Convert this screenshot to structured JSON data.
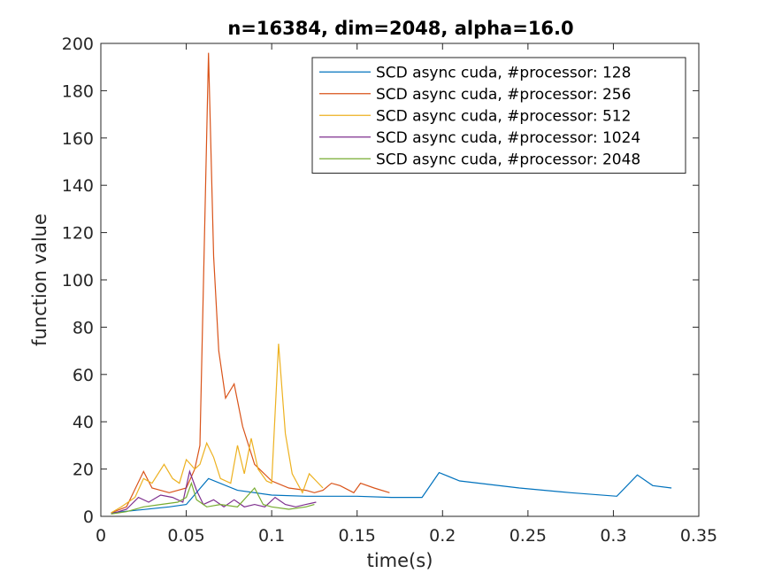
{
  "chart_data": {
    "type": "line",
    "title": "n=16384, dim=2048, alpha=16.0",
    "xlabel": "time(s)",
    "ylabel": "function value",
    "xlim": [
      0,
      0.35
    ],
    "ylim": [
      0,
      200
    ],
    "xticks": [
      "0",
      "0.05",
      "0.1",
      "0.15",
      "0.2",
      "0.25",
      "0.3",
      "0.35"
    ],
    "xtick_values": [
      0,
      0.05,
      0.1,
      0.15,
      0.2,
      0.25,
      0.3,
      0.35
    ],
    "yticks": [
      "0",
      "20",
      "40",
      "60",
      "80",
      "100",
      "120",
      "140",
      "160",
      "180",
      "200"
    ],
    "ytick_values": [
      0,
      20,
      40,
      60,
      80,
      100,
      120,
      140,
      160,
      180,
      200
    ],
    "grid": false,
    "legend_position": "top-right",
    "series": [
      {
        "name": "SCD  async  cuda, #processor: 128",
        "color": "#0072BD",
        "points": [
          [
            0.006,
            1.5
          ],
          [
            0.02,
            2.5
          ],
          [
            0.04,
            4
          ],
          [
            0.05,
            5
          ],
          [
            0.063,
            16
          ],
          [
            0.08,
            11
          ],
          [
            0.1,
            9
          ],
          [
            0.12,
            8.5
          ],
          [
            0.15,
            8.5
          ],
          [
            0.17,
            8
          ],
          [
            0.188,
            8
          ],
          [
            0.198,
            18.5
          ],
          [
            0.21,
            15
          ],
          [
            0.245,
            12
          ],
          [
            0.275,
            10
          ],
          [
            0.302,
            8.5
          ],
          [
            0.314,
            17.5
          ],
          [
            0.323,
            13
          ],
          [
            0.334,
            12
          ]
        ]
      },
      {
        "name": "SCD  async  cuda, #processor: 256",
        "color": "#D95319",
        "points": [
          [
            0.006,
            1.5
          ],
          [
            0.015,
            4
          ],
          [
            0.025,
            19
          ],
          [
            0.03,
            12
          ],
          [
            0.04,
            10
          ],
          [
            0.05,
            12
          ],
          [
            0.055,
            20
          ],
          [
            0.058,
            30
          ],
          [
            0.063,
            196
          ],
          [
            0.066,
            110
          ],
          [
            0.069,
            70
          ],
          [
            0.073,
            50
          ],
          [
            0.078,
            56
          ],
          [
            0.083,
            38
          ],
          [
            0.09,
            22
          ],
          [
            0.1,
            15
          ],
          [
            0.11,
            12
          ],
          [
            0.12,
            11
          ],
          [
            0.125,
            10
          ],
          [
            0.13,
            11
          ],
          [
            0.135,
            14
          ],
          [
            0.14,
            13
          ],
          [
            0.148,
            10
          ],
          [
            0.152,
            14
          ],
          [
            0.16,
            12
          ],
          [
            0.169,
            10
          ]
        ]
      },
      {
        "name": "SCD  async  cuda, #processor: 512",
        "color": "#EDB120",
        "points": [
          [
            0.006,
            1.5
          ],
          [
            0.012,
            4
          ],
          [
            0.02,
            8
          ],
          [
            0.025,
            16
          ],
          [
            0.03,
            14
          ],
          [
            0.037,
            22
          ],
          [
            0.042,
            16
          ],
          [
            0.046,
            14
          ],
          [
            0.05,
            24
          ],
          [
            0.055,
            20
          ],
          [
            0.058,
            22
          ],
          [
            0.062,
            31
          ],
          [
            0.066,
            25
          ],
          [
            0.07,
            16
          ],
          [
            0.076,
            14
          ],
          [
            0.08,
            30
          ],
          [
            0.084,
            18
          ],
          [
            0.088,
            33
          ],
          [
            0.092,
            20
          ],
          [
            0.097,
            15
          ],
          [
            0.1,
            14
          ],
          [
            0.104,
            73
          ],
          [
            0.108,
            35
          ],
          [
            0.112,
            18
          ],
          [
            0.115,
            14
          ],
          [
            0.118,
            10
          ],
          [
            0.122,
            18
          ],
          [
            0.126,
            15
          ],
          [
            0.13,
            12
          ]
        ]
      },
      {
        "name": "SCD  async  cuda, #processor: 1024",
        "color": "#7E2F8E",
        "points": [
          [
            0.006,
            1
          ],
          [
            0.015,
            3
          ],
          [
            0.022,
            8
          ],
          [
            0.028,
            6
          ],
          [
            0.035,
            9
          ],
          [
            0.042,
            8
          ],
          [
            0.048,
            6
          ],
          [
            0.052,
            19
          ],
          [
            0.056,
            11
          ],
          [
            0.06,
            5
          ],
          [
            0.066,
            7
          ],
          [
            0.072,
            4
          ],
          [
            0.078,
            7
          ],
          [
            0.084,
            4
          ],
          [
            0.09,
            5
          ],
          [
            0.096,
            4
          ],
          [
            0.102,
            8
          ],
          [
            0.108,
            5
          ],
          [
            0.114,
            4
          ],
          [
            0.12,
            5
          ],
          [
            0.126,
            6
          ]
        ]
      },
      {
        "name": "SCD  async  cuda, #processor: 2048",
        "color": "#77AC30",
        "points": [
          [
            0.006,
            1
          ],
          [
            0.015,
            2
          ],
          [
            0.025,
            4
          ],
          [
            0.035,
            5
          ],
          [
            0.045,
            6
          ],
          [
            0.05,
            8
          ],
          [
            0.053,
            14
          ],
          [
            0.056,
            7
          ],
          [
            0.062,
            4
          ],
          [
            0.07,
            5
          ],
          [
            0.08,
            4
          ],
          [
            0.09,
            12
          ],
          [
            0.095,
            5
          ],
          [
            0.1,
            4
          ],
          [
            0.11,
            3
          ],
          [
            0.12,
            4
          ],
          [
            0.125,
            5
          ]
        ]
      }
    ]
  }
}
